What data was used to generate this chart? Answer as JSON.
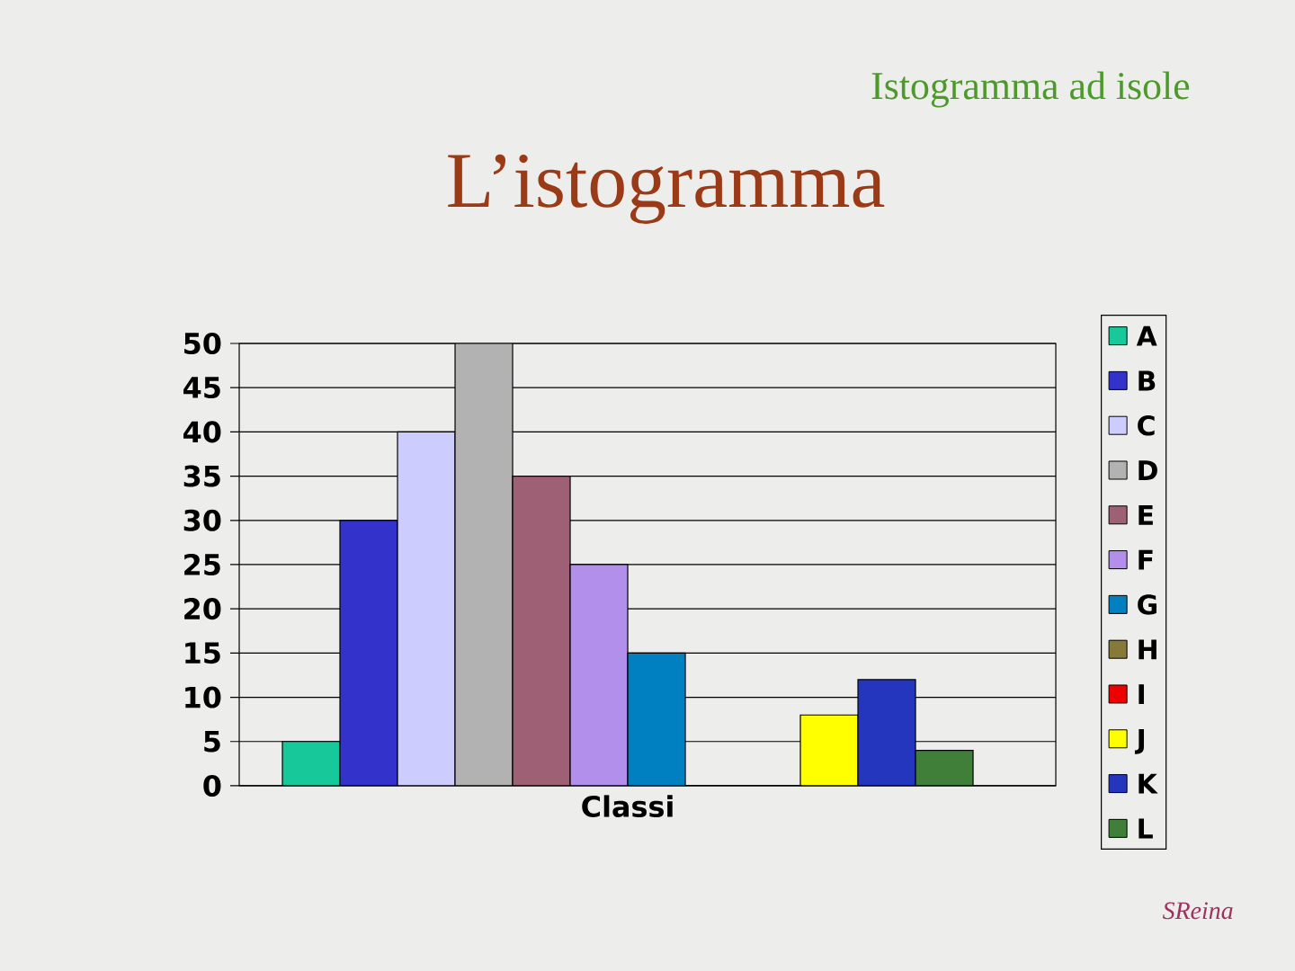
{
  "chart_data": {
    "type": "bar",
    "title": "L’istogramma",
    "subtitle": "Istogramma ad isole",
    "xlabel": "Classi",
    "categories": [
      null
    ],
    "series": [
      {
        "name": "A",
        "color": "#17c99a",
        "values": [
          5
        ]
      },
      {
        "name": "B",
        "color": "#3333cc",
        "values": [
          30
        ]
      },
      {
        "name": "C",
        "color": "#ccccff",
        "values": [
          40
        ]
      },
      {
        "name": "D",
        "color": "#b2b2b2",
        "values": [
          50
        ]
      },
      {
        "name": "E",
        "color": "#9e6075",
        "values": [
          35
        ]
      },
      {
        "name": "F",
        "color": "#b28fea",
        "values": [
          25
        ]
      },
      {
        "name": "G",
        "color": "#0080c0",
        "values": [
          15
        ]
      },
      {
        "name": "H",
        "color": "#857a3a",
        "values": [
          0
        ]
      },
      {
        "name": "I",
        "color": "#ee0000",
        "values": [
          0
        ]
      },
      {
        "name": "J",
        "color": "#ffff00",
        "values": [
          8
        ]
      },
      {
        "name": "K",
        "color": "#2435be",
        "values": [
          12
        ]
      },
      {
        "name": "L",
        "color": "#3f7f3a",
        "values": [
          4
        ]
      }
    ],
    "ylim": [
      0,
      50
    ],
    "yticks": [
      0,
      5,
      10,
      15,
      20,
      25,
      30,
      35,
      40,
      45,
      50
    ],
    "grid": "y",
    "legend": "right",
    "annotations": [
      "SReina"
    ]
  }
}
